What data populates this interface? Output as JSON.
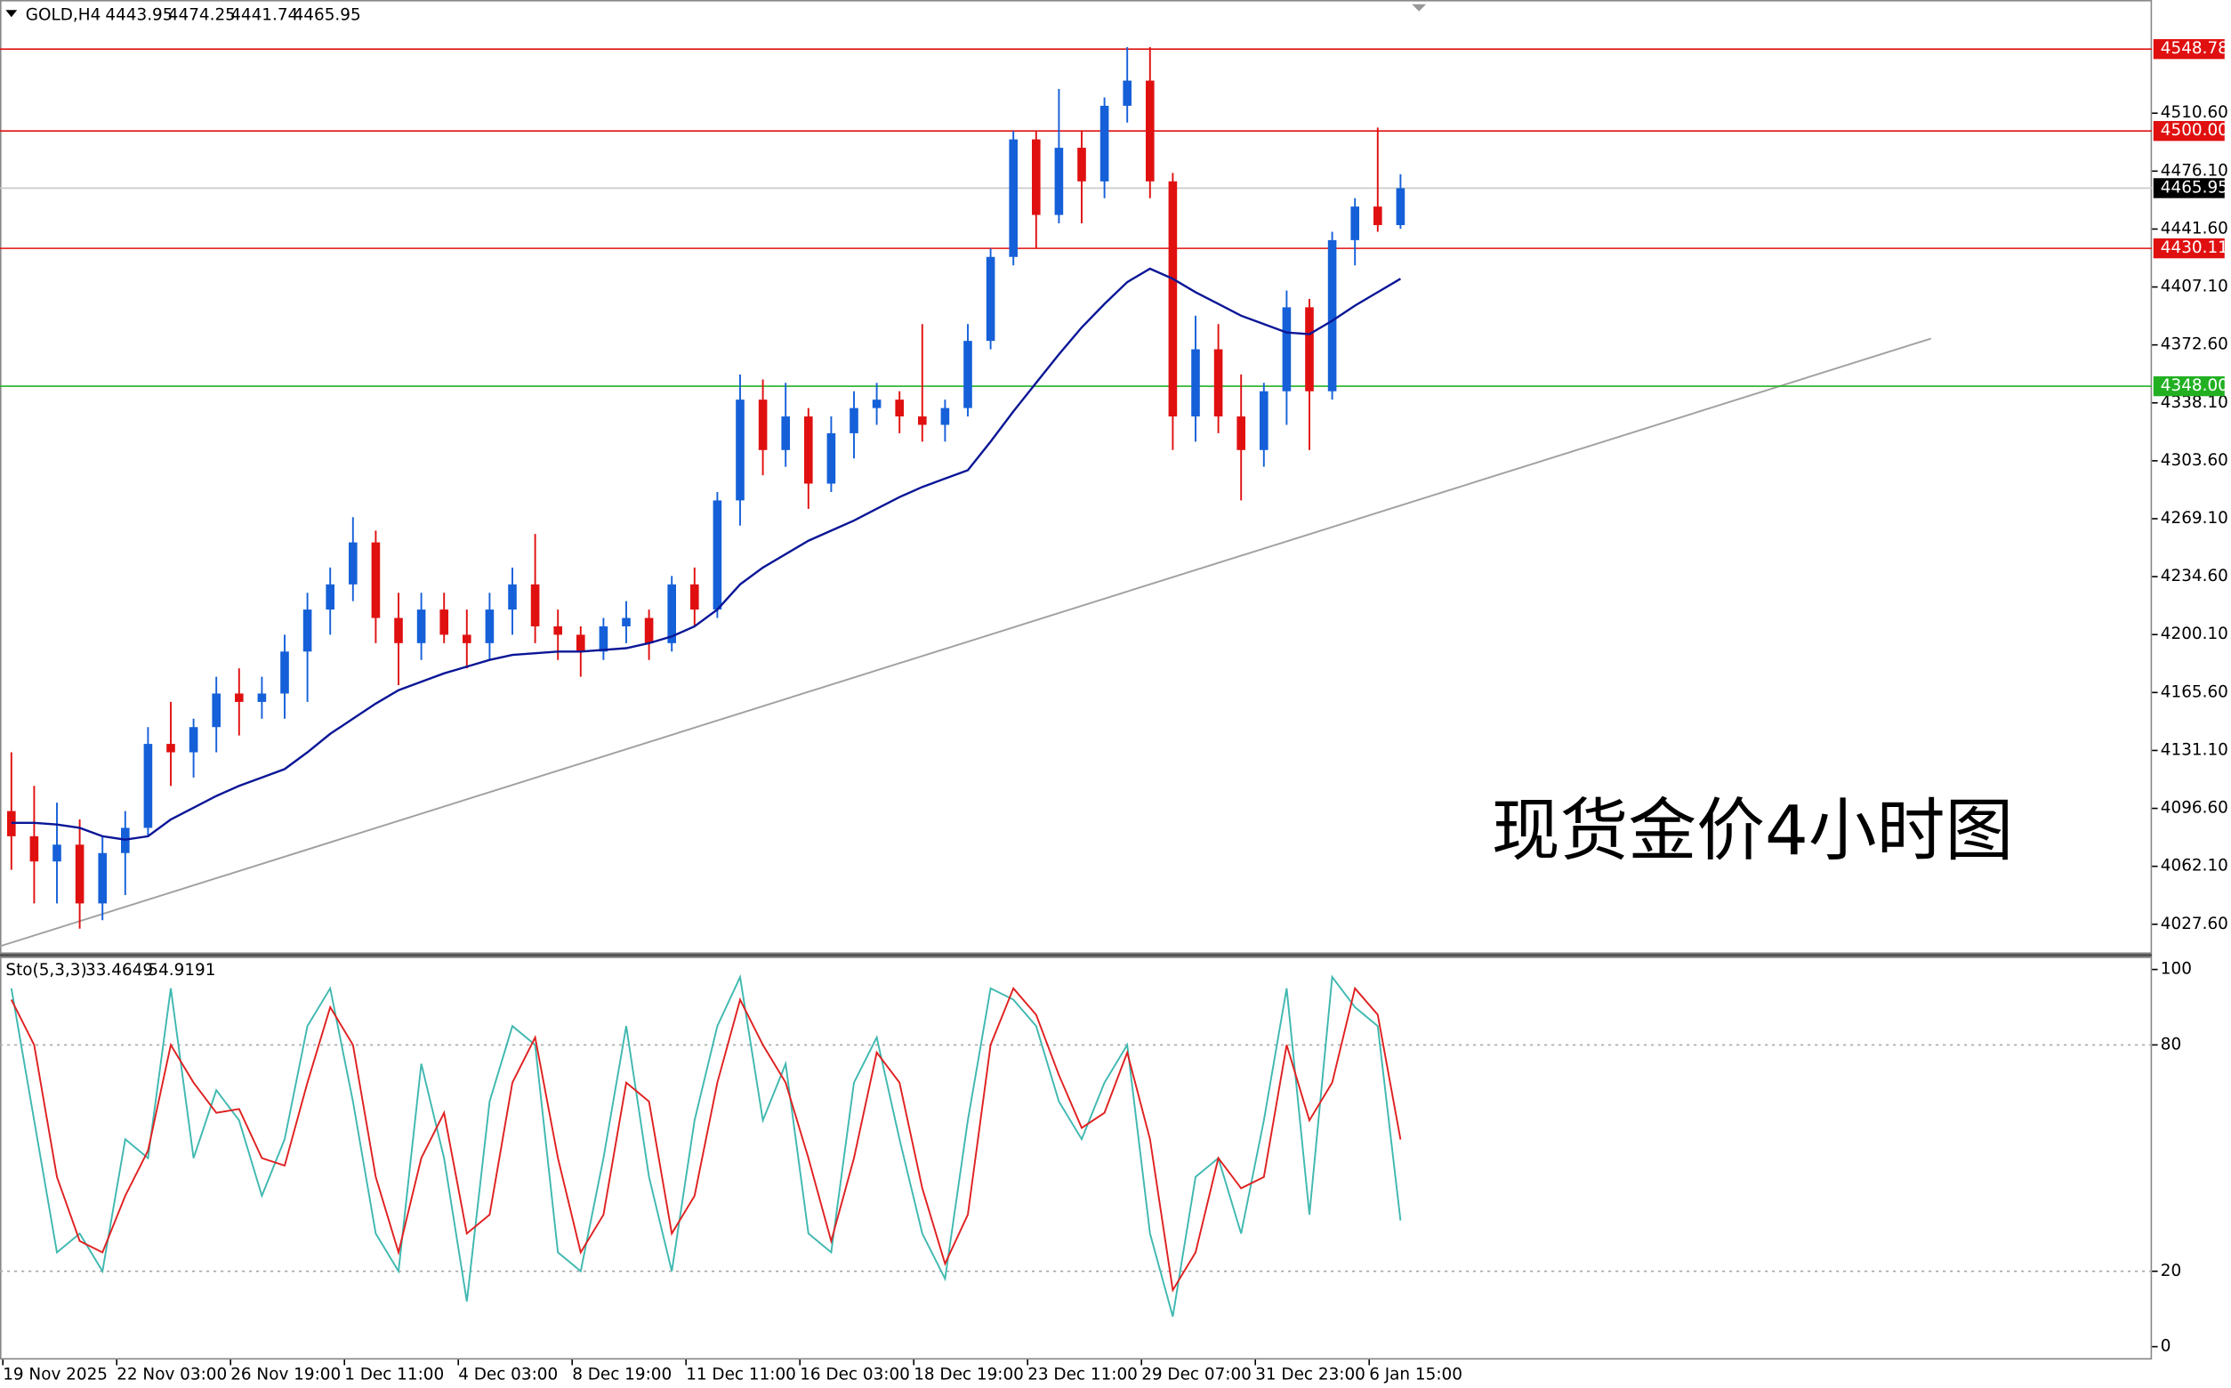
{
  "chart_data": [
    {
      "type": "candlestick",
      "title": "GOLD,H4",
      "header_values": [
        4443.95,
        4474.25,
        4441.74,
        4465.95
      ],
      "annotation": "现货金价4小时图",
      "categories": [
        "19 Nov 2025",
        null,
        null,
        null,
        null,
        "22 Nov 03:00",
        null,
        null,
        null,
        null,
        "26 Nov 19:00",
        null,
        null,
        null,
        null,
        "1 Dec 11:00",
        null,
        null,
        null,
        null,
        "4 Dec 03:00",
        null,
        null,
        null,
        null,
        "8 Dec 19:00",
        null,
        null,
        null,
        null,
        "11 Dec 11:00",
        null,
        null,
        null,
        null,
        "16 Dec 03:00",
        null,
        null,
        null,
        null,
        "18 Dec 19:00",
        null,
        null,
        null,
        null,
        "23 Dec 11:00",
        null,
        null,
        null,
        null,
        "29 Dec 07:00",
        null,
        null,
        null,
        null,
        "31 Dec 23:00",
        null,
        null,
        null,
        null,
        "6 Jan 15:00",
        null
      ],
      "open": [
        4095,
        4080,
        4065,
        4075,
        4040,
        4070,
        4085,
        4135,
        4130,
        4145,
        4165,
        4160,
        4165,
        4190,
        4215,
        4230,
        4255,
        4210,
        4195,
        4215,
        4200,
        4195,
        4215,
        4230,
        4205,
        4200,
        4190,
        4205,
        4210,
        4195,
        4230,
        4215,
        4280,
        4340,
        4310,
        4330,
        4290,
        4320,
        4335,
        4340,
        4330,
        4325,
        4335,
        4375,
        4425,
        4495,
        4450,
        4490,
        4470,
        4515,
        4530,
        4470,
        4330,
        4370,
        4330,
        4310,
        4345,
        4395,
        4345,
        4435,
        4455,
        4443.95
      ],
      "high": [
        4130,
        4110,
        4100,
        4090,
        4080,
        4095,
        4145,
        4160,
        4150,
        4175,
        4180,
        4175,
        4200,
        4225,
        4240,
        4270,
        4262,
        4225,
        4225,
        4225,
        4215,
        4225,
        4240,
        4260,
        4215,
        4205,
        4210,
        4220,
        4215,
        4235,
        4240,
        4285,
        4355,
        4352,
        4350,
        4335,
        4330,
        4345,
        4350,
        4345,
        4385,
        4340,
        4385,
        4430,
        4500,
        4500,
        4525,
        4500,
        4520,
        4550,
        4550,
        4475,
        4390,
        4385,
        4355,
        4350,
        4405,
        4400,
        4440,
        4460,
        4502,
        4474.25
      ],
      "low": [
        4060,
        4040,
        4040,
        4025,
        4030,
        4045,
        4080,
        4110,
        4115,
        4130,
        4140,
        4150,
        4150,
        4160,
        4200,
        4220,
        4195,
        4170,
        4185,
        4195,
        4180,
        4185,
        4200,
        4195,
        4185,
        4175,
        4185,
        4195,
        4185,
        4190,
        4205,
        4210,
        4265,
        4295,
        4300,
        4275,
        4285,
        4305,
        4325,
        4320,
        4315,
        4315,
        4330,
        4370,
        4420,
        4430,
        4445,
        4445,
        4460,
        4505,
        4460,
        4310,
        4315,
        4320,
        4280,
        4300,
        4325,
        4310,
        4340,
        4420,
        4440,
        4441.74
      ],
      "close": [
        4080,
        4065,
        4075,
        4040,
        4070,
        4085,
        4135,
        4130,
        4145,
        4165,
        4160,
        4165,
        4190,
        4215,
        4230,
        4255,
        4210,
        4195,
        4215,
        4200,
        4195,
        4215,
        4230,
        4205,
        4200,
        4190,
        4205,
        4210,
        4195,
        4230,
        4215,
        4280,
        4340,
        4310,
        4330,
        4290,
        4320,
        4335,
        4340,
        4330,
        4325,
        4335,
        4375,
        4425,
        4495,
        4450,
        4490,
        4470,
        4515,
        4530,
        4470,
        4330,
        4370,
        4330,
        4310,
        4345,
        4395,
        4345,
        4435,
        4455,
        4443.95,
        4465.95
      ],
      "up_color": "#1560d8",
      "down_color": "#e01010",
      "ma": {
        "color": "#0a1696",
        "values": [
          4088,
          4088,
          4087,
          4085,
          4080,
          4078,
          4080,
          4090,
          4097,
          4104,
          4110,
          4115,
          4120,
          4130,
          4141,
          4150,
          4159,
          4167,
          4172,
          4177,
          4181,
          4185,
          4188,
          4189,
          4190,
          4190,
          4191,
          4192,
          4195,
          4199,
          4205,
          4215,
          4230,
          4240,
          4248,
          4256,
          4262,
          4268,
          4275,
          4282,
          4288,
          4293,
          4298,
          4315,
          4333,
          4350,
          4367,
          4383,
          4397,
          4410,
          4418,
          4412,
          4404,
          4397,
          4390,
          4385,
          4380,
          4379,
          4387,
          4396,
          4404,
          4412
        ]
      },
      "trendline": {
        "color": "#a0a0a0",
        "x": [
          -0.5,
          84.3
        ],
        "values": [
          4014.5,
          4376.4
        ]
      },
      "price_lines": [
        {
          "value": 4548.78,
          "label": "4548.78",
          "color": "#e01010"
        },
        {
          "value": 4500,
          "label": "4500.00",
          "color": "#e01010"
        },
        {
          "value": 4465.95,
          "label": "4465.95",
          "color": "#000000"
        },
        {
          "value": 4430.11,
          "label": "4430.11",
          "color": "#e01010"
        },
        {
          "value": 4348,
          "label": "4348.00",
          "color": "#22b022"
        }
      ],
      "ylim": [
        4010,
        4578
      ],
      "yticks": [
        {
          "value": 4510.6,
          "label": "4510.60"
        },
        {
          "value": 4476.1,
          "label": "4476.10"
        },
        {
          "value": 4441.6,
          "label": "4441.60"
        },
        {
          "value": 4407.1,
          "label": "4407.10"
        },
        {
          "value": 4372.6,
          "label": "4372.60"
        },
        {
          "value": 4338.1,
          "label": "4338.10"
        },
        {
          "value": 4303.6,
          "label": "4303.60"
        },
        {
          "value": 4269.1,
          "label": "4269.10"
        },
        {
          "value": 4234.6,
          "label": "4234.60"
        },
        {
          "value": 4200.1,
          "label": "4200.10"
        },
        {
          "value": 4165.6,
          "label": "4165.60"
        },
        {
          "value": 4131.1,
          "label": "4131.10"
        },
        {
          "value": 4096.6,
          "label": "4096.60"
        },
        {
          "value": 4062.1,
          "label": "4062.10"
        },
        {
          "value": 4027.6,
          "label": "4027.60"
        }
      ]
    },
    {
      "type": "line",
      "title": "Sto(5,3,3)",
      "header_values": [
        33.4649,
        54.9191
      ],
      "series": [
        {
          "color": "#3fb8b0",
          "values": [
            95,
            60,
            25,
            30,
            20,
            55,
            50,
            95,
            50,
            68,
            60,
            40,
            55,
            85,
            95,
            65,
            30,
            20,
            75,
            50,
            12,
            65,
            85,
            80,
            25,
            20,
            50,
            85,
            45,
            20,
            60,
            85,
            98,
            60,
            75,
            30,
            25,
            70,
            82,
            55,
            30,
            18,
            60,
            95,
            92,
            85,
            65,
            55,
            70,
            80,
            30,
            8,
            45,
            50,
            30,
            60,
            95,
            35,
            98,
            90,
            85,
            33.4649
          ]
        },
        {
          "color": "#e02020",
          "values": [
            92,
            80,
            45,
            28,
            25,
            40,
            52,
            80,
            70,
            62,
            63,
            50,
            48,
            70,
            90,
            80,
            45,
            25,
            50,
            62,
            30,
            35,
            70,
            82,
            50,
            25,
            35,
            70,
            65,
            30,
            40,
            70,
            92,
            80,
            70,
            50,
            28,
            50,
            78,
            70,
            42,
            22,
            35,
            80,
            95,
            88,
            72,
            58,
            62,
            78,
            55,
            15,
            25,
            50,
            42,
            45,
            80,
            60,
            70,
            95,
            88,
            54.9191
          ]
        }
      ],
      "ylim": [
        -3.4,
        103.4
      ],
      "yticks": [
        100,
        80,
        20,
        0
      ],
      "levels": [
        80,
        20
      ]
    }
  ]
}
